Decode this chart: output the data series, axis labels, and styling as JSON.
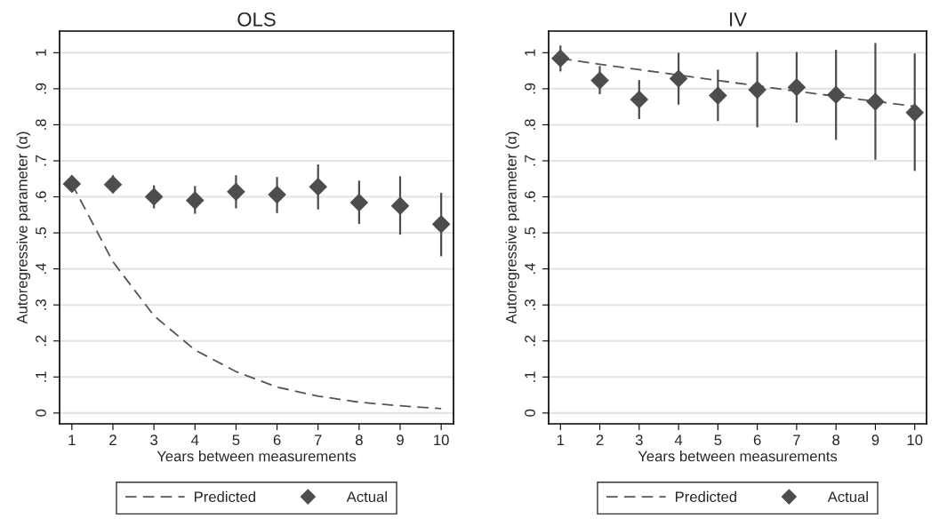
{
  "chart_data": [
    {
      "type": "scatter",
      "title": "OLS",
      "xlabel": "Years between measurements",
      "ylabel": "Autoregressive parameter (α)",
      "x": [
        1,
        2,
        3,
        4,
        5,
        6,
        7,
        8,
        9,
        10
      ],
      "xlim": [
        0.7,
        10.3
      ],
      "ylim": [
        -0.03,
        1.06
      ],
      "xticks": [
        1,
        2,
        3,
        4,
        5,
        6,
        7,
        8,
        9,
        10
      ],
      "yticks": [
        0,
        {
          "value": 0.1,
          "label": ".1"
        },
        {
          "value": 0.2,
          "label": ".2"
        },
        {
          "value": 0.3,
          "label": ".3"
        },
        {
          "value": 0.4,
          "label": ".4"
        },
        {
          "value": 0.5,
          "label": ".5"
        },
        {
          "value": 0.6,
          "label": ".6"
        },
        {
          "value": 0.7,
          "label": ".7"
        },
        {
          "value": 0.8,
          "label": ".8"
        },
        {
          "value": 0.9,
          "label": ".9"
        },
        1
      ],
      "grid": "y",
      "legend": "bottom",
      "series": [
        {
          "name": "Predicted",
          "type": "line",
          "line_style": "dashed",
          "marker": "none",
          "color": "#555555",
          "values": [
            0.636,
            0.42,
            0.27,
            0.175,
            0.115,
            0.072,
            0.047,
            0.03,
            0.02,
            0.012
          ]
        },
        {
          "name": "Actual",
          "marker": "diamond",
          "color": "#4d4d4d",
          "values": [
            0.636,
            0.634,
            0.6,
            0.59,
            0.614,
            0.606,
            0.628,
            0.584,
            0.575,
            0.524
          ],
          "errors": [
            [
              0.62,
              0.66
            ],
            [
              0.61,
              0.66
            ],
            [
              0.568,
              0.632
            ],
            [
              0.553,
              0.63
            ],
            [
              0.568,
              0.66
            ],
            [
              0.555,
              0.655
            ],
            [
              0.565,
              0.69
            ],
            [
              0.525,
              0.645
            ],
            [
              0.495,
              0.657
            ],
            [
              0.435,
              0.611
            ]
          ]
        }
      ]
    },
    {
      "type": "scatter",
      "title": "IV",
      "xlabel": "Years between measurements",
      "ylabel": "Autoregressive parameter (α)",
      "x": [
        1,
        2,
        3,
        4,
        5,
        6,
        7,
        8,
        9,
        10
      ],
      "xlim": [
        0.7,
        10.3
      ],
      "ylim": [
        -0.03,
        1.06
      ],
      "xticks": [
        1,
        2,
        3,
        4,
        5,
        6,
        7,
        8,
        9,
        10
      ],
      "yticks": [
        0,
        {
          "value": 0.1,
          "label": ".1"
        },
        {
          "value": 0.2,
          "label": ".2"
        },
        {
          "value": 0.3,
          "label": ".3"
        },
        {
          "value": 0.4,
          "label": ".4"
        },
        {
          "value": 0.5,
          "label": ".5"
        },
        {
          "value": 0.6,
          "label": ".6"
        },
        {
          "value": 0.7,
          "label": ".7"
        },
        {
          "value": 0.8,
          "label": ".8"
        },
        {
          "value": 0.9,
          "label": ".9"
        },
        1
      ],
      "grid": "y",
      "legend": "bottom",
      "series": [
        {
          "name": "Predicted",
          "type": "line",
          "line_style": "dashed",
          "marker": "none",
          "color": "#555555",
          "values": [
            0.984,
            0.968,
            0.953,
            0.938,
            0.923,
            0.908,
            0.893,
            0.879,
            0.865,
            0.851
          ]
        },
        {
          "name": "Actual",
          "marker": "diamond",
          "color": "#4d4d4d",
          "values": [
            0.984,
            0.923,
            0.87,
            0.928,
            0.881,
            0.897,
            0.904,
            0.883,
            0.864,
            0.834
          ],
          "errors": [
            [
              0.948,
              1.02
            ],
            [
              0.885,
              0.963
            ],
            [
              0.816,
              0.924
            ],
            [
              0.856,
              1.0
            ],
            [
              0.81,
              0.953
            ],
            [
              0.793,
              1.002
            ],
            [
              0.806,
              1.002
            ],
            [
              0.758,
              1.008
            ],
            [
              0.703,
              1.027
            ],
            [
              0.672,
              0.998
            ]
          ]
        }
      ]
    }
  ]
}
